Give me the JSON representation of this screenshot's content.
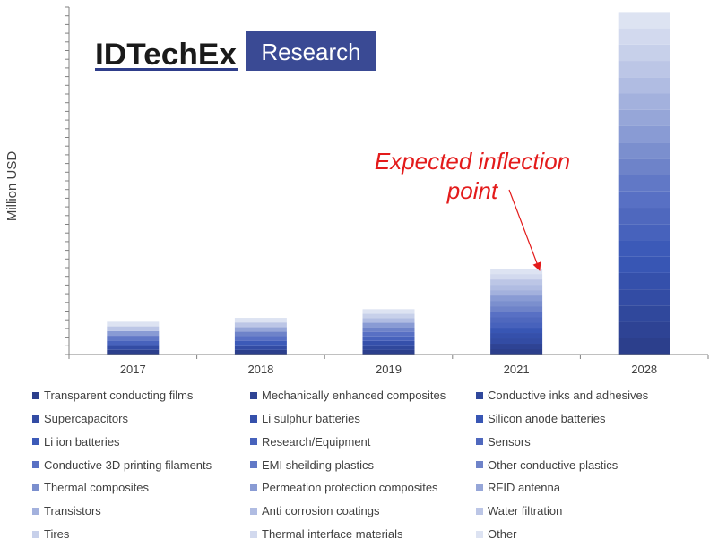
{
  "chart_data": {
    "type": "bar",
    "stacked": true,
    "title": "",
    "xlabel": "",
    "ylabel": "Million USD",
    "categories": [
      "2017",
      "2018",
      "2019",
      "2021",
      "2028"
    ],
    "totals": [
      34,
      38,
      47,
      89,
      355
    ],
    "ylim": [
      0,
      360
    ],
    "y_tick_labels_shown": false,
    "grid": false,
    "legend_position": "bottom",
    "series": [
      {
        "name": "Transparent conducting films",
        "color": "#2c3f8c"
      },
      {
        "name": "Mechanically enhanced composites",
        "color": "#2e4394"
      },
      {
        "name": "Conductive inks and adhesives",
        "color": "#30489c"
      },
      {
        "name": "Supercapacitors",
        "color": "#334ca4"
      },
      {
        "name": "Li sulphur batteries",
        "color": "#3550ab"
      },
      {
        "name": "Silicon anode batteries",
        "color": "#3856b4"
      },
      {
        "name": "Li ion batteries",
        "color": "#3c5ab8"
      },
      {
        "name": "Research/Equipment",
        "color": "#4762bc"
      },
      {
        "name": "Sensors",
        "color": "#4f68be"
      },
      {
        "name": "Conductive 3D printing filaments",
        "color": "#5870c4"
      },
      {
        "name": "EMI sheilding plastics",
        "color": "#6178c6"
      },
      {
        "name": "Other conductive plastics",
        "color": "#6e83c9"
      },
      {
        "name": "Thermal composites",
        "color": "#7b8fce"
      },
      {
        "name": "Permeation protection composites",
        "color": "#899bd4"
      },
      {
        "name": "RFID antenna",
        "color": "#96a6d8"
      },
      {
        "name": "Transistors",
        "color": "#a3b1dd"
      },
      {
        "name": "Anti corrosion coatings",
        "color": "#b0bce2"
      },
      {
        "name": "Water filtration",
        "color": "#bcc6e6"
      },
      {
        "name": "Tires",
        "color": "#c7d0ea"
      },
      {
        "name": "Thermal interface materials",
        "color": "#d2d9ee"
      },
      {
        "name": "Other",
        "color": "#dde3f2"
      }
    ],
    "annotation": {
      "text_lines": [
        "Expected inflection",
        "point"
      ],
      "target_category": "2021",
      "color": "#e31b1b"
    }
  },
  "logo": {
    "brand": "IDTechEx",
    "suffix": "Research",
    "colors": {
      "brand_text": "#1a1a1a",
      "underline": "#2e3d8a",
      "box": "#3a4a94",
      "box_text": "#ffffff"
    }
  },
  "colors": {
    "axis": "#808080",
    "tick_text": "#404040"
  }
}
